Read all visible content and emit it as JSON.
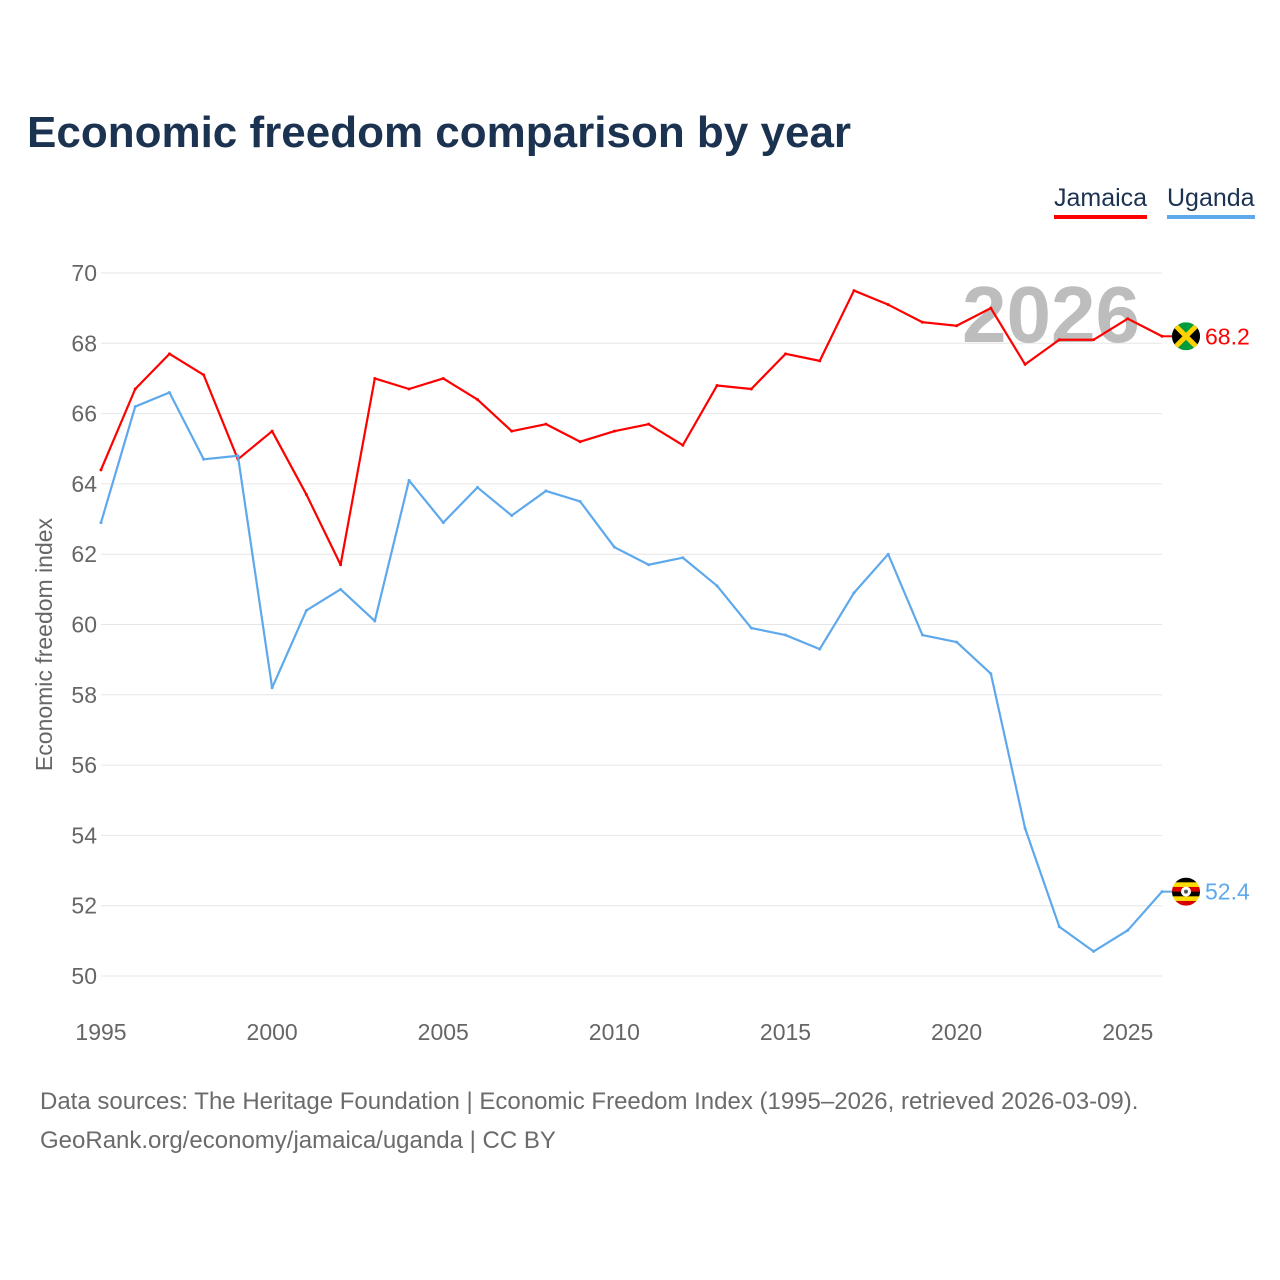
{
  "chart_data": {
    "type": "line",
    "title": "Economic freedom comparison by year",
    "xlabel": "",
    "ylabel": "Economic freedom index",
    "ylim": [
      50,
      70
    ],
    "xlim": [
      1995,
      2026
    ],
    "yticks": [
      "50",
      "52",
      "54",
      "56",
      "58",
      "60",
      "62",
      "64",
      "66",
      "68",
      "70"
    ],
    "xticks": [
      "1995",
      "2000",
      "2005",
      "2010",
      "2015",
      "2020",
      "2025"
    ],
    "grid": true,
    "legend_placement": "top-right",
    "watermark_year": "2026",
    "x": [
      1995,
      1996,
      1997,
      1998,
      1999,
      2000,
      2001,
      2002,
      2003,
      2004,
      2005,
      2006,
      2007,
      2008,
      2009,
      2010,
      2011,
      2012,
      2013,
      2014,
      2015,
      2016,
      2017,
      2018,
      2019,
      2020,
      2021,
      2022,
      2023,
      2024,
      2025,
      2026
    ],
    "series": [
      {
        "name": "Jamaica",
        "color": "#ff0000",
        "end_label": "68.2",
        "values": [
          64.4,
          66.7,
          67.7,
          67.1,
          64.7,
          65.5,
          63.7,
          61.7,
          67.0,
          66.7,
          67.0,
          66.4,
          65.5,
          65.7,
          65.2,
          65.5,
          65.7,
          65.1,
          66.8,
          66.7,
          67.7,
          67.5,
          69.5,
          69.1,
          68.6,
          68.5,
          69.0,
          67.4,
          68.1,
          68.1,
          68.7,
          68.2
        ]
      },
      {
        "name": "Uganda",
        "color": "#5ea8ec",
        "end_label": "52.4",
        "values": [
          62.9,
          66.2,
          66.6,
          64.7,
          64.8,
          58.2,
          60.4,
          61.0,
          60.1,
          64.1,
          62.9,
          63.9,
          63.1,
          63.8,
          63.5,
          62.2,
          61.7,
          61.9,
          61.1,
          59.9,
          59.7,
          59.3,
          60.9,
          62.0,
          59.7,
          59.5,
          58.6,
          54.2,
          51.4,
          50.7,
          51.3,
          52.4
        ]
      }
    ]
  },
  "footer": {
    "line1": "Data sources: The Heritage Foundation | Economic Freedom Index (1995–2026, retrieved 2026-03-09).",
    "line2": "GeoRank.org/economy/jamaica/uganda | CC BY"
  }
}
